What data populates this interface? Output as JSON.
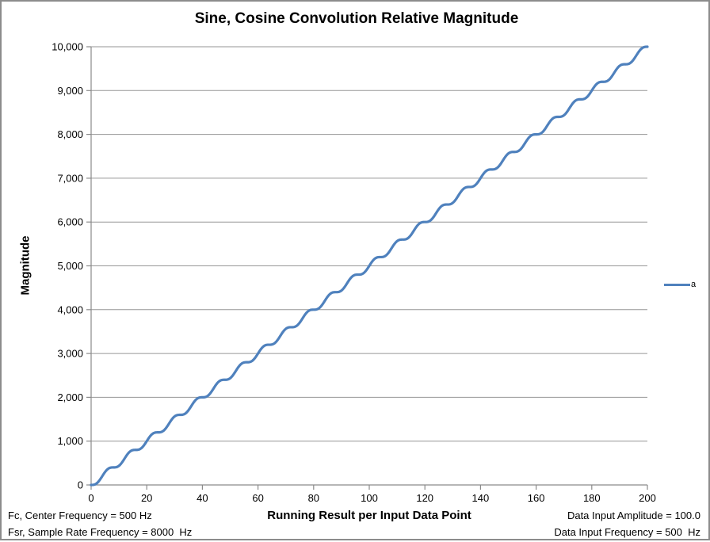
{
  "chart_data": {
    "type": "line",
    "title": "Sine, Cosine Convolution Relative Magnitude",
    "xlabel": "Running Result per Input Data Point",
    "ylabel": "Magnitude",
    "xlim": [
      0,
      200
    ],
    "ylim": [
      0,
      10000
    ],
    "x_ticks": [
      0,
      20,
      40,
      60,
      80,
      100,
      120,
      140,
      160,
      180,
      200
    ],
    "x_tick_labels": [
      "0",
      "20",
      "40",
      "60",
      "80",
      "100",
      "120",
      "140",
      "160",
      "180",
      "200"
    ],
    "y_ticks": [
      0,
      1000,
      2000,
      3000,
      4000,
      5000,
      6000,
      7000,
      8000,
      9000,
      10000
    ],
    "y_tick_labels": [
      "0",
      "1,000",
      "2,000",
      "3,000",
      "4,000",
      "5,000",
      "6,000",
      "7,000",
      "8,000",
      "9,000",
      "10,000"
    ],
    "grid": "horizontal-gridlines-only",
    "legend_position": "right-outside",
    "series": [
      {
        "name": "a",
        "color": "#4F81BD",
        "line_width": 3.2,
        "model": {
          "description": "Smooth rising staircase: running convolution magnitude grows ~50 per input point with a ripple of period 8 samples (Fsr/Fc/2 ripple); plateaus at multiples of 8.",
          "formula": "y = slope*x - ripple_amplitude*sin(2*PI*x/ripple_period)",
          "slope": 50,
          "ripple_period": 8,
          "ripple_amplitude": 63.66,
          "x_start": 0,
          "x_end": 200,
          "sample_step": 0.25
        },
        "anchor_points": [
          [
            0,
            0
          ],
          [
            20,
            1000
          ],
          [
            40,
            2000
          ],
          [
            60,
            3000
          ],
          [
            80,
            4000
          ],
          [
            100,
            5000
          ],
          [
            120,
            6000
          ],
          [
            140,
            7000
          ],
          [
            160,
            8000
          ],
          [
            180,
            9000
          ],
          [
            200,
            10000
          ]
        ]
      }
    ],
    "annotations": {
      "bottom_left": [
        "Fc, Center Frequency = 500 Hz",
        "Fsr, Sample Rate Frequency = 8000  Hz"
      ],
      "bottom_right": [
        "Data Input Amplitude = 100.0",
        "Data Input Frequency = 500  Hz"
      ]
    },
    "colors": {
      "series": "#4F81BD",
      "gridline": "#969696",
      "axis": "#8A8A8A",
      "frame_border": "#8C8C8C",
      "text": "#000000"
    }
  }
}
